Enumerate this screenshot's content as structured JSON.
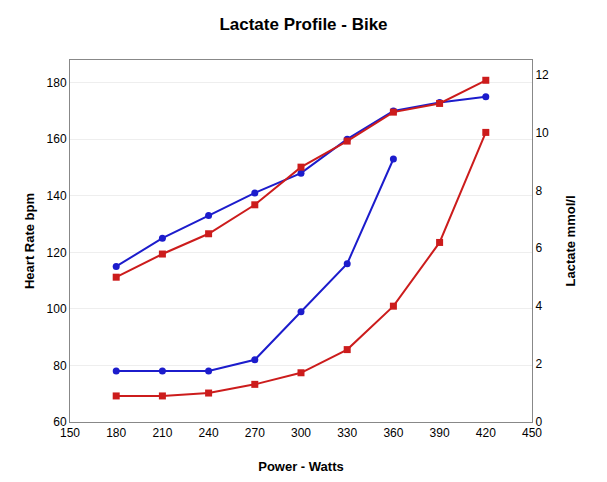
{
  "chart_data": {
    "type": "line",
    "title": "Lactate Profile - Bike",
    "xlabel": "Power - Watts",
    "ylabel": "Heart Rate bpm",
    "y2label": "Lactate mmol/l",
    "x": [
      180,
      210,
      240,
      270,
      300,
      330,
      360,
      390,
      420
    ],
    "series": [
      {
        "color": "#1C1CCC",
        "marker": "circle",
        "values": [
          115,
          125,
          133,
          141,
          148,
          160,
          170,
          173,
          175
        ]
      },
      {
        "color": "#1C1CCC",
        "marker": "circle",
        "values": [
          78,
          78,
          78,
          82,
          99,
          116,
          153,
          null,
          null
        ]
      },
      {
        "color": "#CC1C1C",
        "marker": "square",
        "axis": "y2",
        "values": [
          5.0,
          5.8,
          6.5,
          7.5,
          8.8,
          9.7,
          10.7,
          11.0,
          11.8
        ]
      },
      {
        "color": "#CC1C1C",
        "marker": "square",
        "axis": "y2",
        "values": [
          0.9,
          0.9,
          1.0,
          1.3,
          1.7,
          2.5,
          4.0,
          6.2,
          10.0
        ]
      }
    ],
    "xlim": [
      150,
      450
    ],
    "xticks": [
      150,
      180,
      210,
      240,
      270,
      300,
      330,
      360,
      390,
      420,
      450
    ],
    "ylim": [
      60,
      188
    ],
    "yticks": [
      60,
      80,
      100,
      120,
      140,
      160,
      180
    ],
    "y2lim": [
      0,
      12.5
    ],
    "y2ticks": [
      0,
      2,
      4,
      6,
      8,
      10,
      12
    ],
    "grid": "y"
  }
}
